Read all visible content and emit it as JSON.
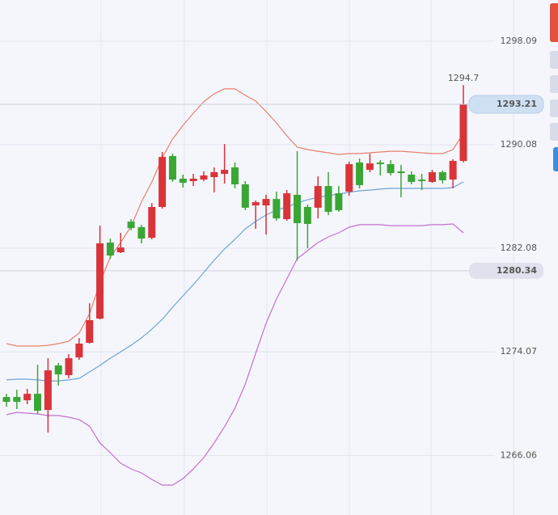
{
  "chart_data": {
    "type": "candlestick",
    "up_color": "#d9343a",
    "down_color": "#3aa635",
    "ylim": [
      1261.46,
      1301.27
    ],
    "yticks": [
      1298.09,
      1290.08,
      1282.08,
      1274.07,
      1266.06
    ],
    "grid": true,
    "open": [
      1270.58,
      1270.58,
      1270.33,
      1270.83,
      1269.58,
      1273.02,
      1272.27,
      1273.64,
      1274.77,
      1276.64,
      1282.52,
      1281.77,
      1284.14,
      1283.71,
      1282.89,
      1285.27,
      1289.21,
      1287.46,
      1287.27,
      1287.39,
      1287.58,
      1287.83,
      1288.33,
      1287.02,
      1285.39,
      1285.39,
      1285.89,
      1284.33,
      1286.21,
      1285.27,
      1285.21,
      1286.89,
      1286.33,
      1286.46,
      1288.71,
      1288.14,
      1288.71,
      1288.58,
      1288.02,
      1287.77,
      1287.39,
      1287.21,
      1287.96,
      1287.39,
      1288.83
    ],
    "high": [
      1270.83,
      1271.14,
      1271.21,
      1273.08,
      1273.58,
      1273.21,
      1273.89,
      1275.14,
      1277.83,
      1283.83,
      1282.83,
      1283.27,
      1284.33,
      1283.89,
      1285.58,
      1289.52,
      1289.39,
      1287.77,
      1287.83,
      1288.02,
      1288.33,
      1290.14,
      1288.71,
      1287.27,
      1285.77,
      1286.21,
      1286.46,
      1286.58,
      1289.58,
      1285.46,
      1287.64,
      1287.96,
      1286.89,
      1288.77,
      1289.02,
      1289.39,
      1288.89,
      1288.89,
      1288.52,
      1288.02,
      1287.83,
      1288.14,
      1288.08,
      1288.96,
      1294.7
    ],
    "low": [
      1269.83,
      1269.65,
      1270.02,
      1269.27,
      1267.83,
      1271.46,
      1272.02,
      1273.46,
      1274.71,
      1276.58,
      1281.27,
      1281.71,
      1283.46,
      1282.46,
      1282.77,
      1285.14,
      1287.21,
      1286.77,
      1286.89,
      1287.27,
      1286.39,
      1287.08,
      1286.71,
      1285.02,
      1283.58,
      1283.14,
      1284.21,
      1284.21,
      1281.14,
      1282.08,
      1284.39,
      1284.64,
      1284.89,
      1286.14,
      1286.71,
      1287.96,
      1287.71,
      1287.71,
      1286.02,
      1287.02,
      1286.58,
      1287.14,
      1287.08,
      1286.71,
      1288.71
    ],
    "close": [
      1270.21,
      1270.21,
      1270.83,
      1269.52,
      1272.64,
      1272.33,
      1273.58,
      1274.71,
      1276.52,
      1282.46,
      1281.52,
      1282.14,
      1283.64,
      1282.83,
      1285.27,
      1289.14,
      1287.39,
      1287.14,
      1287.46,
      1287.71,
      1287.96,
      1288.14,
      1287.02,
      1285.21,
      1285.64,
      1285.89,
      1284.39,
      1286.33,
      1284.02,
      1283.96,
      1286.89,
      1284.89,
      1285.02,
      1288.58,
      1286.96,
      1288.64,
      1288.58,
      1287.89,
      1287.89,
      1287.21,
      1287.27,
      1287.96,
      1287.33,
      1288.83,
      1293.21
    ],
    "overlays": [
      {
        "color": "#e8806a",
        "values": [
          1274.71,
          1274.52,
          1274.52,
          1274.52,
          1274.58,
          1274.71,
          1274.9,
          1275.52,
          1277.02,
          1279.4,
          1281.4,
          1282.52,
          1283.77,
          1285.65,
          1287.21,
          1289.08,
          1290.52,
          1291.58,
          1292.52,
          1293.4,
          1294.02,
          1294.4,
          1294.4,
          1293.9,
          1293.46,
          1292.65,
          1291.77,
          1290.77,
          1289.9,
          1289.71,
          1289.58,
          1289.46,
          1289.33,
          1289.4,
          1289.4,
          1289.46,
          1289.52,
          1289.58,
          1289.58,
          1289.52,
          1289.46,
          1289.4,
          1289.4,
          1289.71,
          1290.96
        ]
      },
      {
        "color": "#6fa3d8",
        "values": [
          1271.9,
          1271.96,
          1271.96,
          1271.9,
          1271.83,
          1271.83,
          1271.9,
          1272.02,
          1272.52,
          1273.02,
          1273.58,
          1274.08,
          1274.58,
          1275.15,
          1275.83,
          1276.58,
          1277.52,
          1278.4,
          1279.27,
          1280.21,
          1281.15,
          1282.02,
          1282.77,
          1283.58,
          1284.15,
          1284.65,
          1285.02,
          1285.27,
          1285.58,
          1285.83,
          1286.02,
          1286.15,
          1286.27,
          1286.4,
          1286.52,
          1286.58,
          1286.65,
          1286.71,
          1286.71,
          1286.71,
          1286.71,
          1286.71,
          1286.71,
          1286.77,
          1287.21
        ]
      },
      {
        "color": "#c36fd1",
        "values": [
          1269.21,
          1269.4,
          1269.33,
          1269.27,
          1269.15,
          1269.15,
          1269.02,
          1268.83,
          1268.33,
          1267.02,
          1266.27,
          1265.46,
          1265.02,
          1264.71,
          1264.21,
          1263.77,
          1263.77,
          1264.27,
          1265.02,
          1265.9,
          1267.02,
          1268.27,
          1269.71,
          1271.58,
          1273.96,
          1276.27,
          1278.15,
          1279.71,
          1281.27,
          1281.9,
          1282.52,
          1282.96,
          1283.27,
          1283.71,
          1283.9,
          1283.9,
          1283.9,
          1283.83,
          1283.83,
          1283.83,
          1283.83,
          1283.9,
          1283.9,
          1283.96,
          1283.27
        ]
      }
    ],
    "marker_price": 1280.34
  }
}
